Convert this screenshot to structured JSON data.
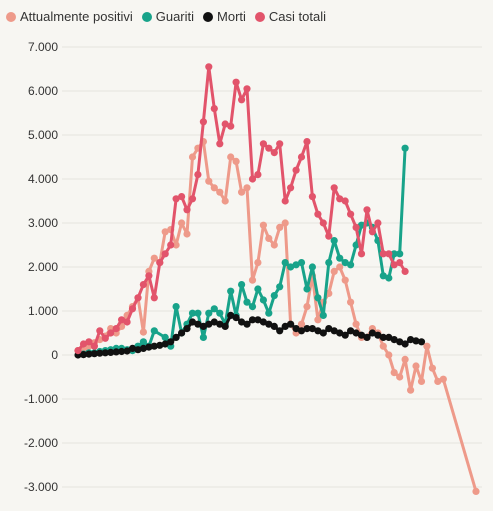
{
  "colors": {
    "Attualmente positivi": "#ee9a8a",
    "Guariti": "#18a38a",
    "Morti": "#111111",
    "Casi totali": "#e2546b"
  },
  "chart_data": {
    "type": "line",
    "title": "",
    "xlabel": "",
    "ylabel": "",
    "ylim": [
      -3000,
      7000
    ],
    "y_ticks": [
      7000,
      6000,
      5000,
      4000,
      3000,
      2000,
      1000,
      0,
      -1000,
      -2000,
      -3000
    ],
    "y_tick_labels": [
      "7.000",
      "6.000",
      "5.000",
      "4.000",
      "3.000",
      "2.000",
      "1.000",
      "0",
      "-1.000",
      "-2.000",
      "-3.000"
    ],
    "grid": "horizontal",
    "legend": "top-left",
    "x": [
      1,
      2,
      3,
      4,
      5,
      6,
      7,
      8,
      9,
      10,
      11,
      12,
      13,
      14,
      15,
      16,
      17,
      18,
      19,
      20,
      21,
      22,
      23,
      24,
      25,
      26,
      27,
      28,
      29,
      30,
      31,
      32,
      33,
      34,
      35,
      36,
      37,
      38,
      39,
      40,
      41,
      42,
      43,
      44,
      45,
      46,
      47,
      48,
      48,
      49,
      50,
      51,
      52,
      53,
      54,
      55,
      56,
      57,
      58,
      59,
      60,
      61,
      62,
      63,
      64,
      65,
      66,
      67,
      68,
      69,
      70,
      71,
      72,
      73,
      74
    ],
    "series": [
      {
        "name": "Attualmente positivi",
        "values": [
          100,
          100,
          200,
          280,
          350,
          430,
          600,
          500,
          650,
          900,
          1100,
          1300,
          520,
          1900,
          2200,
          2100,
          2800,
          2850,
          2500,
          3000,
          2750,
          4500,
          4700,
          4850,
          3950,
          3800,
          3700,
          3500,
          4500,
          4400,
          3700,
          3800,
          1700,
          2100,
          2950,
          2650,
          2500,
          2900,
          3000,
          700,
          500,
          700,
          1100,
          1800,
          800,
          1200,
          1400,
          1900,
          2000,
          1700,
          1200,
          700,
          400,
          400,
          600,
          500,
          200,
          0,
          -400,
          -500,
          -100,
          -800,
          -250,
          -600,
          200,
          -300,
          -600,
          -550,
          -3100
        ],
        "x": [
          1,
          2,
          3,
          4,
          5,
          6,
          7,
          8,
          9,
          10,
          11,
          12,
          13,
          14,
          15,
          16,
          17,
          18,
          19,
          20,
          21,
          22,
          23,
          24,
          25,
          26,
          27,
          28,
          29,
          30,
          31,
          32,
          33,
          34,
          35,
          36,
          37,
          38,
          39,
          40,
          41,
          42,
          43,
          44,
          45,
          46,
          47,
          48,
          49,
          50,
          51,
          52,
          53,
          54,
          55,
          56,
          57,
          58,
          59,
          60,
          61,
          62,
          63,
          64,
          65,
          66,
          67,
          68,
          74
        ]
      },
      {
        "name": "Guariti",
        "values": [
          20,
          50,
          50,
          80,
          100,
          120,
          150,
          150,
          120,
          100,
          200,
          300,
          200,
          550,
          400,
          200,
          1100,
          500,
          700,
          950,
          950,
          400,
          950,
          1050,
          950,
          700,
          1450,
          900,
          1600,
          1200,
          1100,
          1500,
          1250,
          950,
          1350,
          1550,
          2100,
          2000,
          2050,
          2100,
          1500,
          2000,
          1300,
          900,
          2100,
          2600,
          2200,
          2100,
          2050,
          2500,
          2950,
          3000,
          2900,
          2600,
          1800,
          1750,
          2300,
          2300,
          4700
        ],
        "x": [
          2,
          3,
          4,
          5,
          6,
          7,
          8,
          9,
          10,
          11,
          12,
          13,
          14,
          15,
          17,
          18,
          19,
          20,
          21,
          22,
          23,
          24,
          25,
          26,
          27,
          28,
          29,
          30,
          31,
          32,
          33,
          34,
          35,
          36,
          37,
          38,
          39,
          40,
          41,
          42,
          43,
          44,
          45,
          46,
          47,
          48,
          49,
          50,
          51,
          52,
          53,
          54,
          55,
          56,
          57,
          58,
          59,
          60,
          61
        ]
      },
      {
        "name": "Morti",
        "values": [
          0,
          10,
          20,
          30,
          40,
          50,
          60,
          70,
          80,
          90,
          150,
          120,
          150,
          180,
          200,
          220,
          250,
          300,
          400,
          500,
          600,
          750,
          700,
          650,
          700,
          750,
          700,
          650,
          900,
          850,
          750,
          700,
          800,
          800,
          750,
          700,
          650,
          550,
          650,
          700,
          600,
          550,
          600,
          600,
          550,
          500,
          600,
          550,
          500,
          450,
          550,
          500,
          450,
          400,
          500,
          450,
          400,
          400,
          350,
          300,
          250,
          350,
          320,
          300
        ],
        "x": [
          1,
          2,
          3,
          4,
          5,
          6,
          7,
          8,
          9,
          10,
          11,
          12,
          13,
          14,
          15,
          16,
          17,
          18,
          19,
          20,
          21,
          22,
          23,
          24,
          25,
          26,
          27,
          28,
          29,
          30,
          31,
          32,
          33,
          34,
          35,
          36,
          37,
          38,
          39,
          40,
          41,
          42,
          43,
          44,
          45,
          46,
          47,
          48,
          49,
          50,
          51,
          52,
          53,
          54,
          55,
          56,
          57,
          58,
          59,
          60,
          61,
          62,
          63,
          64
        ]
      },
      {
        "name": "Casi totali",
        "values": [
          100,
          250,
          300,
          200,
          550,
          380,
          500,
          600,
          800,
          750,
          1050,
          1300,
          1600,
          1800,
          1300,
          2100,
          2300,
          2500,
          3550,
          3600,
          3300,
          3550,
          4100,
          5300,
          6550,
          5600,
          4800,
          5250,
          5200,
          6200,
          5800,
          6050,
          4000,
          4100,
          4800,
          4700,
          4600,
          4800,
          3500,
          3800,
          4200,
          4500,
          4850,
          3600,
          3200,
          3000,
          2700,
          3800,
          3550,
          3500,
          3200,
          2900,
          2300,
          3300,
          2800,
          3000,
          2300,
          2300,
          2050,
          2100,
          1900
        ],
        "x": [
          1,
          2,
          3,
          4,
          5,
          6,
          7,
          8,
          9,
          10,
          11,
          12,
          13,
          14,
          15,
          16,
          17,
          18,
          19,
          20,
          21,
          22,
          23,
          24,
          25,
          26,
          27,
          28,
          29,
          30,
          31,
          32,
          33,
          34,
          35,
          36,
          37,
          38,
          39,
          40,
          41,
          42,
          43,
          44,
          45,
          46,
          47,
          48,
          49,
          50,
          51,
          52,
          53,
          54,
          55,
          56,
          57,
          58,
          59,
          60,
          61
        ]
      }
    ]
  }
}
